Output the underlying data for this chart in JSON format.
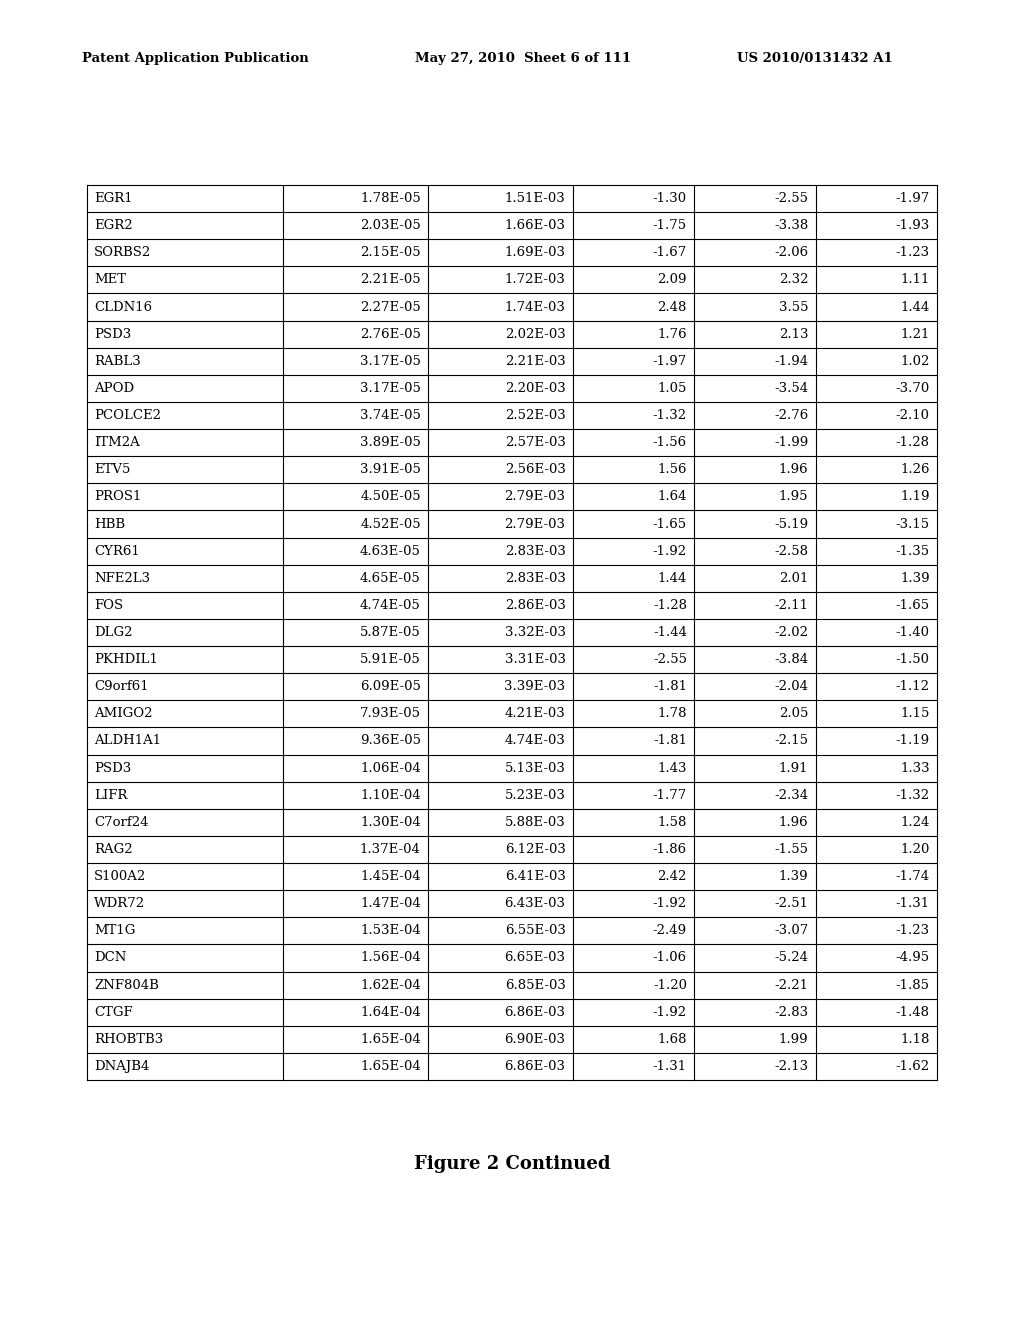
{
  "header_left": "Patent Application Publication",
  "header_mid": "May 27, 2010  Sheet 6 of 111",
  "header_right": "US 2010/0131432 A1",
  "caption": "Figure 2 Continued",
  "table_data": [
    [
      "EGR1",
      "1.78E-05",
      "1.51E-03",
      "-1.30",
      "-2.55",
      "-1.97"
    ],
    [
      "EGR2",
      "2.03E-05",
      "1.66E-03",
      "-1.75",
      "-3.38",
      "-1.93"
    ],
    [
      "SORBS2",
      "2.15E-05",
      "1.69E-03",
      "-1.67",
      "-2.06",
      "-1.23"
    ],
    [
      "MET",
      "2.21E-05",
      "1.72E-03",
      "2.09",
      "2.32",
      "1.11"
    ],
    [
      "CLDN16",
      "2.27E-05",
      "1.74E-03",
      "2.48",
      "3.55",
      "1.44"
    ],
    [
      "PSD3",
      "2.76E-05",
      "2.02E-03",
      "1.76",
      "2.13",
      "1.21"
    ],
    [
      "RABL3",
      "3.17E-05",
      "2.21E-03",
      "-1.97",
      "-1.94",
      "1.02"
    ],
    [
      "APOD",
      "3.17E-05",
      "2.20E-03",
      "1.05",
      "-3.54",
      "-3.70"
    ],
    [
      "PCOLCE2",
      "3.74E-05",
      "2.52E-03",
      "-1.32",
      "-2.76",
      "-2.10"
    ],
    [
      "ITM2A",
      "3.89E-05",
      "2.57E-03",
      "-1.56",
      "-1.99",
      "-1.28"
    ],
    [
      "ETV5",
      "3.91E-05",
      "2.56E-03",
      "1.56",
      "1.96",
      "1.26"
    ],
    [
      "PROS1",
      "4.50E-05",
      "2.79E-03",
      "1.64",
      "1.95",
      "1.19"
    ],
    [
      "HBB",
      "4.52E-05",
      "2.79E-03",
      "-1.65",
      "-5.19",
      "-3.15"
    ],
    [
      "CYR61",
      "4.63E-05",
      "2.83E-03",
      "-1.92",
      "-2.58",
      "-1.35"
    ],
    [
      "NFE2L3",
      "4.65E-05",
      "2.83E-03",
      "1.44",
      "2.01",
      "1.39"
    ],
    [
      "FOS",
      "4.74E-05",
      "2.86E-03",
      "-1.28",
      "-2.11",
      "-1.65"
    ],
    [
      "DLG2",
      "5.87E-05",
      "3.32E-03",
      "-1.44",
      "-2.02",
      "-1.40"
    ],
    [
      "PKHDIL1",
      "5.91E-05",
      "3.31E-03",
      "-2.55",
      "-3.84",
      "-1.50"
    ],
    [
      "C9orf61",
      "6.09E-05",
      "3.39E-03",
      "-1.81",
      "-2.04",
      "-1.12"
    ],
    [
      "AMIGO2",
      "7.93E-05",
      "4.21E-03",
      "1.78",
      "2.05",
      "1.15"
    ],
    [
      "ALDH1A1",
      "9.36E-05",
      "4.74E-03",
      "-1.81",
      "-2.15",
      "-1.19"
    ],
    [
      "PSD3",
      "1.06E-04",
      "5.13E-03",
      "1.43",
      "1.91",
      "1.33"
    ],
    [
      "LIFR",
      "1.10E-04",
      "5.23E-03",
      "-1.77",
      "-2.34",
      "-1.32"
    ],
    [
      "C7orf24",
      "1.30E-04",
      "5.88E-03",
      "1.58",
      "1.96",
      "1.24"
    ],
    [
      "RAG2",
      "1.37E-04",
      "6.12E-03",
      "-1.86",
      "-1.55",
      "1.20"
    ],
    [
      "S100A2",
      "1.45E-04",
      "6.41E-03",
      "2.42",
      "1.39",
      "-1.74"
    ],
    [
      "WDR72",
      "1.47E-04",
      "6.43E-03",
      "-1.92",
      "-2.51",
      "-1.31"
    ],
    [
      "MT1G",
      "1.53E-04",
      "6.55E-03",
      "-2.49",
      "-3.07",
      "-1.23"
    ],
    [
      "DCN",
      "1.56E-04",
      "6.65E-03",
      "-1.06",
      "-5.24",
      "-4.95"
    ],
    [
      "ZNF804B",
      "1.62E-04",
      "6.85E-03",
      "-1.20",
      "-2.21",
      "-1.85"
    ],
    [
      "CTGF",
      "1.64E-04",
      "6.86E-03",
      "-1.92",
      "-2.83",
      "-1.48"
    ],
    [
      "RHOBTB3",
      "1.65E-04",
      "6.90E-03",
      "1.68",
      "1.99",
      "1.18"
    ],
    [
      "DNAJB4",
      "1.65E-04",
      "6.86E-03",
      "-1.31",
      "-2.13",
      "-1.62"
    ]
  ],
  "background_color": "#ffffff",
  "text_color": "#000000",
  "line_color": "#000000",
  "font_size": 9.5,
  "header_font_size": 9.5,
  "caption_font_size": 13
}
